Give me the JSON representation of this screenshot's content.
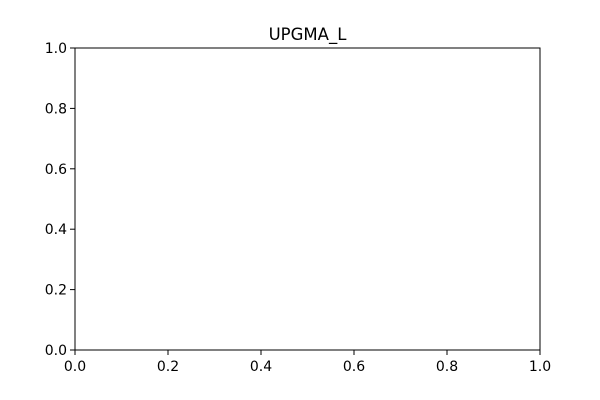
{
  "chart_data": {
    "type": "scatter",
    "title": "UPGMA_L",
    "xlabel": "",
    "ylabel": "",
    "xlim": [
      0.0,
      1.0
    ],
    "ylim": [
      0.0,
      1.0
    ],
    "x_ticks": [
      "0.0",
      "0.2",
      "0.4",
      "0.6",
      "0.8",
      "1.0"
    ],
    "y_ticks": [
      "0.0",
      "0.2",
      "0.4",
      "0.6",
      "0.8",
      "1.0"
    ],
    "series": [],
    "grid": false,
    "legend": "none"
  }
}
